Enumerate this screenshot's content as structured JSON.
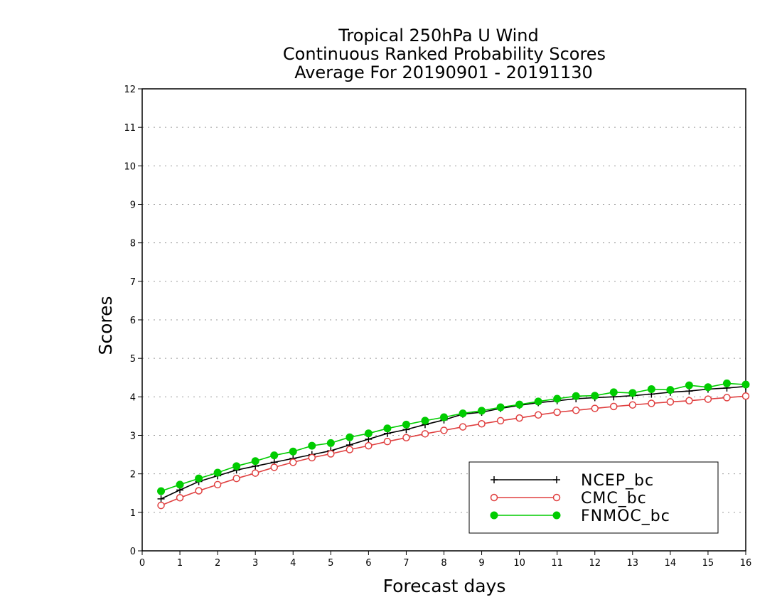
{
  "chart_data": {
    "type": "line",
    "title_lines": [
      "Tropical 250hPa U Wind",
      "Continuous Ranked Probability Scores",
      "Average For 20190901 - 20191130"
    ],
    "xlabel": "Forecast days",
    "ylabel": "Scores",
    "xlim": [
      0,
      16
    ],
    "ylim": [
      0,
      12
    ],
    "x_ticks": [
      0,
      1,
      2,
      3,
      4,
      5,
      6,
      7,
      8,
      9,
      10,
      11,
      12,
      13,
      14,
      15,
      16
    ],
    "y_ticks": [
      0,
      1,
      2,
      3,
      4,
      5,
      6,
      7,
      8,
      9,
      10,
      11,
      12
    ],
    "grid": "horizontal dotted",
    "legend_position": "bottom-right",
    "x": [
      0.5,
      1,
      1.5,
      2,
      2.5,
      3,
      3.5,
      4,
      4.5,
      5,
      5.5,
      6,
      6.5,
      7,
      7.5,
      8,
      8.5,
      9,
      9.5,
      10,
      10.5,
      11,
      11.5,
      12,
      12.5,
      13,
      13.5,
      14,
      14.5,
      15,
      15.5,
      16
    ],
    "series": [
      {
        "name": "NCEP_bc",
        "color": "#000000",
        "marker": "plus",
        "values": [
          1.35,
          1.58,
          1.8,
          1.95,
          2.1,
          2.2,
          2.3,
          2.4,
          2.5,
          2.6,
          2.75,
          2.9,
          3.05,
          3.15,
          3.28,
          3.4,
          3.55,
          3.6,
          3.7,
          3.78,
          3.85,
          3.9,
          3.95,
          3.98,
          4.0,
          4.03,
          4.07,
          4.12,
          4.15,
          4.2,
          4.23,
          4.27
        ]
      },
      {
        "name": "CMC_bc",
        "color": "#e04040",
        "marker": "open-circle",
        "values": [
          1.18,
          1.38,
          1.56,
          1.72,
          1.88,
          2.02,
          2.17,
          2.3,
          2.42,
          2.52,
          2.63,
          2.73,
          2.84,
          2.94,
          3.04,
          3.13,
          3.22,
          3.3,
          3.38,
          3.45,
          3.53,
          3.6,
          3.65,
          3.7,
          3.75,
          3.79,
          3.83,
          3.87,
          3.9,
          3.94,
          3.98,
          4.02
        ]
      },
      {
        "name": "FNMOC_bc",
        "color": "#00cc00",
        "marker": "filled-circle",
        "values": [
          1.55,
          1.72,
          1.88,
          2.03,
          2.2,
          2.33,
          2.48,
          2.58,
          2.73,
          2.8,
          2.95,
          3.05,
          3.18,
          3.28,
          3.38,
          3.47,
          3.57,
          3.64,
          3.73,
          3.8,
          3.88,
          3.95,
          4.02,
          4.03,
          4.12,
          4.1,
          4.2,
          4.18,
          4.3,
          4.25,
          4.35,
          4.32
        ]
      }
    ]
  }
}
